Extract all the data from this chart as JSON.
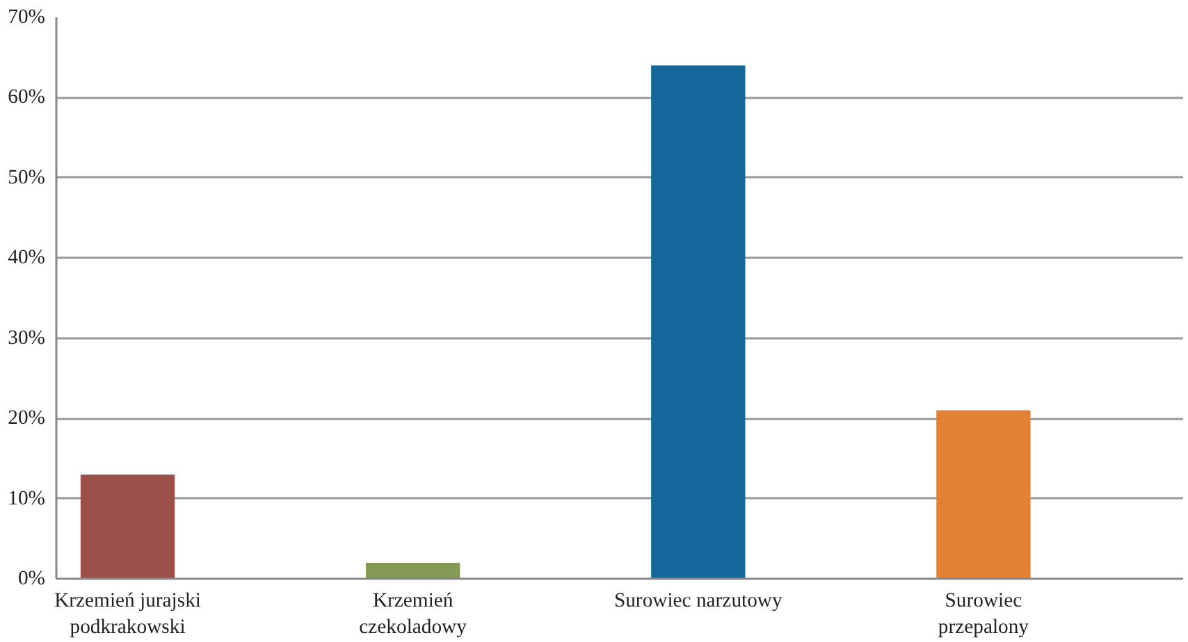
{
  "chart_data": {
    "type": "bar",
    "categories": [
      "Krzemień jurajski podkrakowski",
      "Krzemień czekoladowy",
      "Surowiec narzutowy",
      "Surowiec przepalony"
    ],
    "values": [
      13,
      2,
      64,
      21
    ],
    "colors": [
      "#9b5049",
      "#869a58",
      "#16679a",
      "#e08136"
    ],
    "ylim": [
      0,
      70
    ],
    "yticks": [
      {
        "value": 0,
        "label": "0%"
      },
      {
        "value": 10,
        "label": "10%"
      },
      {
        "value": 20,
        "label": "20%"
      },
      {
        "value": 30,
        "label": "30%"
      },
      {
        "value": 40,
        "label": "40%"
      },
      {
        "value": 50,
        "label": "50%"
      },
      {
        "value": 60,
        "label": "60%"
      },
      {
        "value": 70,
        "label": "70%"
      }
    ],
    "grid": "y"
  }
}
